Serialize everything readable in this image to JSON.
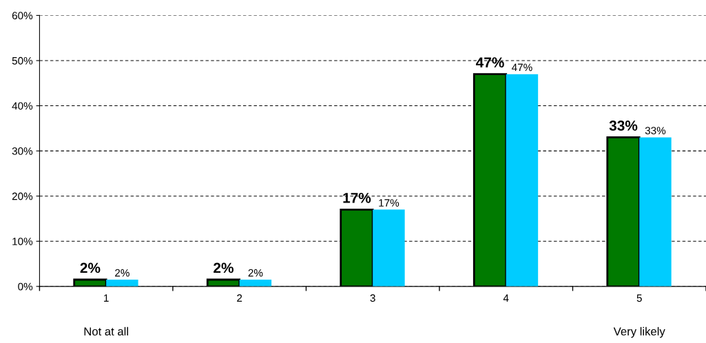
{
  "chart_data": {
    "type": "bar",
    "categories": [
      "1",
      "2",
      "3",
      "4",
      "5"
    ],
    "series": [
      {
        "color": "#007a00",
        "values": [
          1.5,
          1.5,
          17,
          47,
          33
        ],
        "value_labels": [
          "2%",
          "2%",
          "17%",
          "47%",
          "33%"
        ]
      },
      {
        "color": "#00ccff",
        "values": [
          1.5,
          1.5,
          17,
          47,
          33
        ],
        "value_labels": [
          "2%",
          "2%",
          "17%",
          "47%",
          "33%"
        ]
      }
    ],
    "ylim": [
      0,
      60
    ],
    "yticks": [
      {
        "value": 0,
        "label": "0%"
      },
      {
        "value": 10,
        "label": "10%"
      },
      {
        "value": 20,
        "label": "20%"
      },
      {
        "value": 30,
        "label": "30%"
      },
      {
        "value": 40,
        "label": "40%"
      },
      {
        "value": 50,
        "label": "50%"
      },
      {
        "value": 60,
        "label": "60%"
      }
    ],
    "grid": "y",
    "legend": false,
    "annotations": [
      "Not at all",
      "Very likely"
    ]
  }
}
